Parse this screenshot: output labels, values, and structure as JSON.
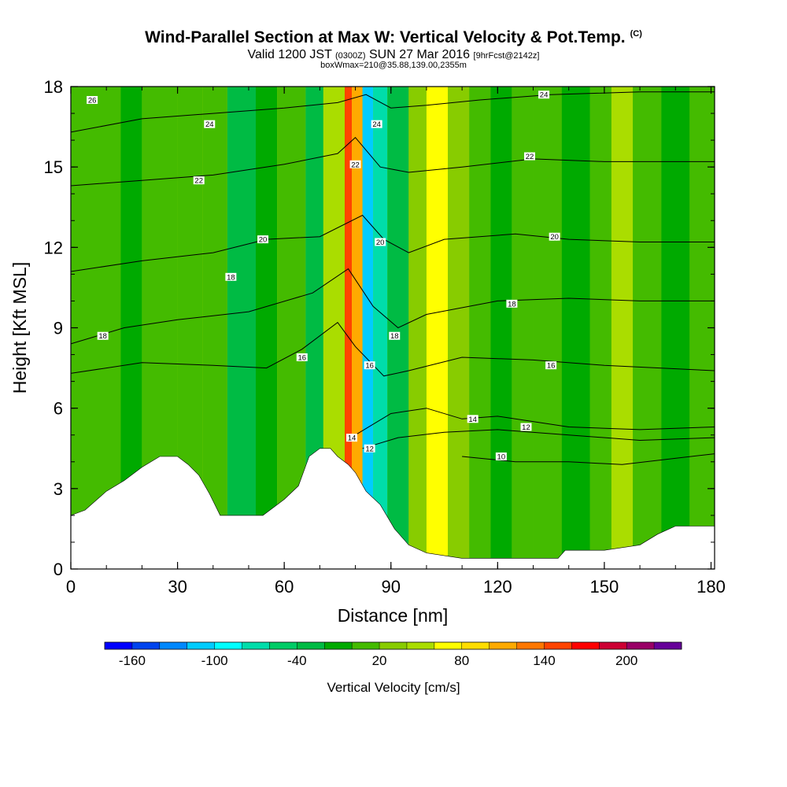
{
  "header": {
    "title": "Wind-Parallel Section at Max W: Vertical Velocity & Pot.Temp.",
    "copyright": "(C)",
    "valid_prefix": "Valid 1200 JST",
    "valid_utc": "(0300Z)",
    "valid_date": "SUN 27 Mar 2016",
    "forecast": "[9hrFcst@2142z]",
    "box_info": "boxWmax=210@35.88,139.00,2355m"
  },
  "colors": {
    "background": "#ffffff",
    "terrain": "#ffffff",
    "contour_line": "#000000",
    "field": "#aadd00"
  },
  "chart_data": {
    "type": "heatmap",
    "xlabel": "Distance [nm]",
    "ylabel": "Height [Kft MSL]",
    "xlim": [
      0,
      181
    ],
    "ylim": [
      0,
      18
    ],
    "x_ticks": [
      "0",
      "30",
      "60",
      "90",
      "120",
      "150",
      "180"
    ],
    "y_ticks": [
      "0",
      "3",
      "6",
      "9",
      "12",
      "15",
      "18"
    ],
    "colorbar": {
      "title": "Vertical Velocity [cm/s]",
      "labels": [
        "-160",
        "-100",
        "-40",
        "20",
        "80",
        "140",
        "200"
      ],
      "levels": [
        -180,
        -160,
        -140,
        -120,
        -100,
        -80,
        -60,
        -40,
        -20,
        0,
        20,
        40,
        60,
        80,
        100,
        120,
        140,
        160,
        180,
        200,
        220
      ],
      "colors": [
        "#0000ff",
        "#0044ee",
        "#0088ff",
        "#00ccff",
        "#00ffff",
        "#00ddaa",
        "#00cc66",
        "#00bb44",
        "#00aa00",
        "#44bb00",
        "#88cc00",
        "#aadd00",
        "#ffff00",
        "#ffdd00",
        "#ffaa00",
        "#ff7700",
        "#ff4400",
        "#ff0000",
        "#cc0033",
        "#990066",
        "#660099"
      ]
    },
    "terrain_profile": [
      [
        0,
        2.0
      ],
      [
        4,
        2.2
      ],
      [
        10,
        2.9
      ],
      [
        15,
        3.3
      ],
      [
        20,
        3.8
      ],
      [
        25,
        4.2
      ],
      [
        30,
        4.2
      ],
      [
        33,
        3.9
      ],
      [
        36,
        3.5
      ],
      [
        39,
        2.8
      ],
      [
        42,
        2.0
      ],
      [
        48,
        2.0
      ],
      [
        54,
        2.0
      ],
      [
        57,
        2.3
      ],
      [
        60,
        2.6
      ],
      [
        64,
        3.1
      ],
      [
        67,
        4.2
      ],
      [
        70,
        4.5
      ],
      [
        73,
        4.5
      ],
      [
        75,
        4.2
      ],
      [
        78,
        3.9
      ],
      [
        80,
        3.6
      ],
      [
        83,
        2.9
      ],
      [
        87,
        2.4
      ],
      [
        91,
        1.5
      ],
      [
        95,
        0.9
      ],
      [
        100,
        0.6
      ],
      [
        110,
        0.4
      ],
      [
        125,
        0.4
      ],
      [
        137,
        0.4
      ],
      [
        139,
        0.7
      ],
      [
        150,
        0.7
      ],
      [
        160,
        0.9
      ],
      [
        165,
        1.3
      ],
      [
        170,
        1.6
      ],
      [
        181,
        1.6
      ]
    ],
    "w_field_bands": [
      {
        "x": 0,
        "w": 10
      },
      {
        "x": 14,
        "w": -10
      },
      {
        "x": 20,
        "w": 8
      },
      {
        "x": 30,
        "w": 12
      },
      {
        "x": 37,
        "w": 5
      },
      {
        "x": 44,
        "w": -40
      },
      {
        "x": 52,
        "w": -5
      },
      {
        "x": 58,
        "w": 8
      },
      {
        "x": 66,
        "w": -30
      },
      {
        "x": 71,
        "w": 40
      },
      {
        "x": 77,
        "w": 150
      },
      {
        "x": 79,
        "w": 100
      },
      {
        "x": 82,
        "w": -110
      },
      {
        "x": 85,
        "w": -80
      },
      {
        "x": 89,
        "w": -40
      },
      {
        "x": 95,
        "w": 20
      },
      {
        "x": 100,
        "w": 60
      },
      {
        "x": 106,
        "w": 30
      },
      {
        "x": 112,
        "w": 5
      },
      {
        "x": 118,
        "w": -10
      },
      {
        "x": 124,
        "w": 10
      },
      {
        "x": 130,
        "w": 5
      },
      {
        "x": 138,
        "w": -10
      },
      {
        "x": 146,
        "w": 10
      },
      {
        "x": 152,
        "w": 45
      },
      {
        "x": 158,
        "w": 5
      },
      {
        "x": 166,
        "w": -10
      },
      {
        "x": 174,
        "w": 5
      },
      {
        "x": 181,
        "w": 0
      }
    ],
    "theta_contours": [
      {
        "label": "10",
        "points": [
          [
            110,
            4.2
          ],
          [
            125,
            4.0
          ],
          [
            140,
            4.0
          ],
          [
            155,
            3.9
          ],
          [
            181,
            4.3
          ]
        ],
        "label_x": 128
      },
      {
        "label": "12",
        "points": [
          [
            82,
            4.5
          ],
          [
            92,
            4.9
          ],
          [
            105,
            5.1
          ],
          [
            120,
            5.2
          ],
          [
            140,
            5.0
          ],
          [
            160,
            4.8
          ],
          [
            181,
            4.9
          ]
        ],
        "label_x": 128
      },
      {
        "label": "14",
        "points": [
          [
            80,
            5.0
          ],
          [
            90,
            5.8
          ],
          [
            100,
            6.0
          ],
          [
            110,
            5.6
          ],
          [
            120,
            5.7
          ],
          [
            140,
            5.3
          ],
          [
            160,
            5.2
          ],
          [
            181,
            5.3
          ]
        ],
        "label_x": 113
      },
      {
        "label": "16",
        "points": [
          [
            0,
            7.3
          ],
          [
            20,
            7.7
          ],
          [
            40,
            7.6
          ],
          [
            55,
            7.5
          ],
          [
            65,
            8.2
          ],
          [
            75,
            9.2
          ],
          [
            80,
            8.3
          ],
          [
            88,
            7.2
          ],
          [
            95,
            7.4
          ],
          [
            110,
            7.9
          ],
          [
            130,
            7.8
          ],
          [
            150,
            7.6
          ],
          [
            181,
            7.4
          ]
        ],
        "label_x": 135
      },
      {
        "label": "18",
        "points": [
          [
            0,
            8.4
          ],
          [
            15,
            9.0
          ],
          [
            30,
            9.3
          ],
          [
            50,
            9.6
          ],
          [
            68,
            10.3
          ],
          [
            78,
            11.2
          ],
          [
            85,
            9.8
          ],
          [
            92,
            9.0
          ],
          [
            100,
            9.5
          ],
          [
            120,
            10.0
          ],
          [
            140,
            10.1
          ],
          [
            160,
            10.0
          ],
          [
            181,
            10.0
          ]
        ],
        "label_x": 124
      },
      {
        "label": "20",
        "points": [
          [
            0,
            11.1
          ],
          [
            20,
            11.5
          ],
          [
            40,
            11.8
          ],
          [
            55,
            12.3
          ],
          [
            70,
            12.4
          ],
          [
            82,
            13.2
          ],
          [
            88,
            12.3
          ],
          [
            95,
            11.8
          ],
          [
            105,
            12.3
          ],
          [
            125,
            12.5
          ],
          [
            140,
            12.3
          ],
          [
            160,
            12.2
          ],
          [
            181,
            12.2
          ]
        ],
        "label_x": 136
      },
      {
        "label": "22",
        "points": [
          [
            0,
            14.3
          ],
          [
            20,
            14.5
          ],
          [
            40,
            14.7
          ],
          [
            60,
            15.1
          ],
          [
            75,
            15.5
          ],
          [
            80,
            16.1
          ],
          [
            87,
            15.0
          ],
          [
            95,
            14.8
          ],
          [
            110,
            15.0
          ],
          [
            130,
            15.3
          ],
          [
            150,
            15.2
          ],
          [
            181,
            15.2
          ]
        ],
        "label_x": 129
      },
      {
        "label": "24",
        "points": [
          [
            0,
            16.3
          ],
          [
            20,
            16.8
          ],
          [
            40,
            17.0
          ],
          [
            60,
            17.2
          ],
          [
            75,
            17.4
          ],
          [
            83,
            17.7
          ],
          [
            90,
            17.2
          ],
          [
            100,
            17.3
          ],
          [
            115,
            17.5
          ],
          [
            135,
            17.7
          ],
          [
            160,
            17.8
          ],
          [
            181,
            17.8
          ]
        ],
        "label_x": 133
      }
    ],
    "contour_labels": [
      {
        "text": "26",
        "x": 6,
        "y": 17.5
      },
      {
        "text": "24",
        "x": 39,
        "y": 16.6
      },
      {
        "text": "24",
        "x": 86,
        "y": 16.6
      },
      {
        "text": "24",
        "x": 133,
        "y": 17.7
      },
      {
        "text": "22",
        "x": 36,
        "y": 14.5
      },
      {
        "text": "22",
        "x": 80,
        "y": 15.1
      },
      {
        "text": "22",
        "x": 129,
        "y": 15.4
      },
      {
        "text": "20",
        "x": 54,
        "y": 12.3
      },
      {
        "text": "20",
        "x": 87,
        "y": 12.2
      },
      {
        "text": "20",
        "x": 136,
        "y": 12.4
      },
      {
        "text": "18",
        "x": 45,
        "y": 10.9
      },
      {
        "text": "18",
        "x": 9,
        "y": 8.7
      },
      {
        "text": "18",
        "x": 91,
        "y": 8.7
      },
      {
        "text": "18",
        "x": 124,
        "y": 9.9
      },
      {
        "text": "16",
        "x": 65,
        "y": 7.9
      },
      {
        "text": "16",
        "x": 84,
        "y": 7.6
      },
      {
        "text": "16",
        "x": 135,
        "y": 7.6
      },
      {
        "text": "14",
        "x": 79,
        "y": 4.9
      },
      {
        "text": "14",
        "x": 113,
        "y": 5.6
      },
      {
        "text": "12",
        "x": 84,
        "y": 4.5
      },
      {
        "text": "12",
        "x": 128,
        "y": 5.3
      },
      {
        "text": "10",
        "x": 121,
        "y": 4.2
      }
    ]
  }
}
